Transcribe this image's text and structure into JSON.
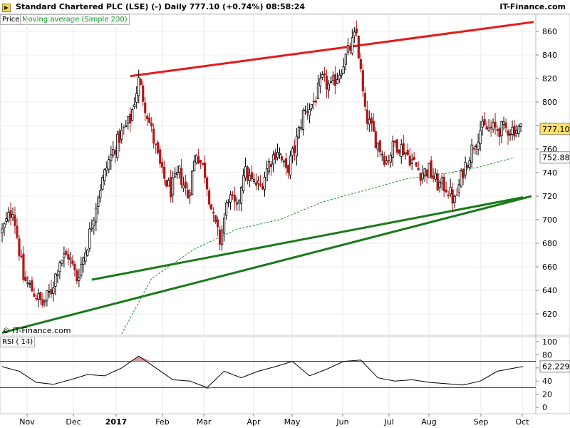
{
  "header": {
    "title": "Standard Chartered PLC (LSE) (-)   Daily   777.10 (+0.74%)   08:58:24",
    "brand": "IT-Finance.com"
  },
  "legend": {
    "price": "Price",
    "moving_average": "Moving average (Simple 200)",
    "rsi": "RSI ( 14)"
  },
  "watermark": "© IT-Finance.com",
  "colors": {
    "candle_up": "#000000",
    "candle_down": "#b01818",
    "ma_line": "#1a9a2a",
    "resistance_line": "#e81818",
    "support_line": "#1a7a1a",
    "rsi_overbought_fill": "#d8a0a0",
    "rsi_oversold_fill": "#9090d0",
    "last_price_box": "#ffe066",
    "ma_box": "#ffffff"
  },
  "chart_data": {
    "type": "candlestick",
    "instrument": "Standard Chartered PLC (LSE)",
    "interval": "Daily",
    "last_price": 777.1,
    "change_pct": 0.74,
    "ma_last": 752.88,
    "rsi_last": 62.229,
    "price_axis": {
      "ticks": [
        620,
        640,
        660,
        680,
        700,
        720,
        740,
        760,
        780,
        800,
        820,
        840,
        860
      ]
    },
    "rsi_axis": {
      "ticks": [
        0,
        20,
        40,
        60,
        80,
        100
      ],
      "levels": [
        30,
        70
      ]
    },
    "x_months": [
      "Nov",
      "Dec",
      "2017",
      "Feb",
      "Mar",
      "Apr",
      "May",
      "Jun",
      "Jul",
      "Aug",
      "Sep",
      "Oct"
    ],
    "close_series": {
      "days": [
        0,
        5,
        10,
        15,
        19,
        23,
        27,
        31,
        35,
        40,
        45,
        50,
        55,
        60,
        64,
        68,
        72,
        75,
        79,
        83,
        87,
        91,
        95,
        99,
        102,
        106,
        110,
        113,
        117,
        121,
        125,
        129,
        133,
        137,
        141,
        146,
        150,
        154,
        158,
        162,
        166,
        170,
        175,
        180,
        184,
        188,
        192,
        196,
        200,
        204,
        208,
        212,
        216,
        220,
        224,
        228,
        232,
        236,
        240,
        244
      ],
      "values": [
        690,
        710,
        650,
        638,
        628,
        640,
        666,
        670,
        650,
        680,
        722,
        750,
        770,
        785,
        818,
        790,
        760,
        738,
        725,
        740,
        720,
        758,
        740,
        700,
        682,
        720,
        708,
        742,
        732,
        728,
        748,
        760,
        740,
        760,
        790,
        800,
        818,
        812,
        826,
        842,
        858,
        790,
        768,
        750,
        765,
        760,
        750,
        740,
        742,
        730,
        728,
        715,
        742,
        760,
        777,
        777,
        777,
        777,
        777,
        777
      ]
    },
    "moving_average_simple_200": {
      "days": [
        56,
        70,
        90,
        110,
        130,
        150,
        170,
        190,
        210,
        224,
        240
      ],
      "values": [
        603,
        650,
        675,
        692,
        700,
        715,
        725,
        735,
        740,
        745,
        752.88
      ]
    },
    "rsi_series": {
      "days": [
        0,
        8,
        16,
        24,
        32,
        40,
        48,
        56,
        64,
        72,
        80,
        88,
        96,
        104,
        112,
        120,
        128,
        136,
        144,
        152,
        160,
        168,
        176,
        184,
        192,
        200,
        208,
        216,
        224,
        232,
        244
      ],
      "values": [
        62,
        55,
        38,
        35,
        42,
        50,
        48,
        60,
        78,
        60,
        42,
        40,
        30,
        55,
        45,
        55,
        62,
        70,
        48,
        58,
        70,
        72,
        45,
        40,
        42,
        38,
        36,
        34,
        40,
        55,
        62.229
      ]
    },
    "trendlines": [
      {
        "name": "resistance",
        "from": {
          "day": 60,
          "price": 822
        },
        "to": {
          "day": 249,
          "price": 868
        }
      },
      {
        "name": "support-upper",
        "from": {
          "day": 42,
          "price": 649
        },
        "to": {
          "day": 244,
          "price": 719
        }
      },
      {
        "name": "support-lower",
        "from": {
          "day": 0,
          "price": 604
        },
        "to": {
          "day": 248,
          "price": 720
        }
      }
    ]
  }
}
